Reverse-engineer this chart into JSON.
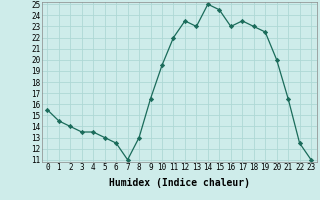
{
  "x": [
    0,
    1,
    2,
    3,
    4,
    5,
    6,
    7,
    8,
    9,
    10,
    11,
    12,
    13,
    14,
    15,
    16,
    17,
    18,
    19,
    20,
    21,
    22,
    23
  ],
  "y": [
    15.5,
    14.5,
    14.0,
    13.5,
    13.5,
    13.0,
    12.5,
    11.0,
    13.0,
    16.5,
    19.5,
    22.0,
    23.5,
    23.0,
    25.0,
    24.5,
    23.0,
    23.5,
    23.0,
    22.5,
    20.0,
    16.5,
    12.5,
    11.0
  ],
  "line_color": "#1a6b5a",
  "marker": "D",
  "marker_size": 2.2,
  "bg_color": "#ceecea",
  "grid_color": "#aed8d5",
  "xlabel": "Humidex (Indice chaleur)",
  "ylim": [
    11,
    25
  ],
  "xlim": [
    -0.5,
    23.5
  ],
  "yticks": [
    11,
    12,
    13,
    14,
    15,
    16,
    17,
    18,
    19,
    20,
    21,
    22,
    23,
    24,
    25
  ],
  "xticks": [
    0,
    1,
    2,
    3,
    4,
    5,
    6,
    7,
    8,
    9,
    10,
    11,
    12,
    13,
    14,
    15,
    16,
    17,
    18,
    19,
    20,
    21,
    22,
    23
  ],
  "tick_fontsize": 5.5,
  "label_fontsize": 7.0
}
